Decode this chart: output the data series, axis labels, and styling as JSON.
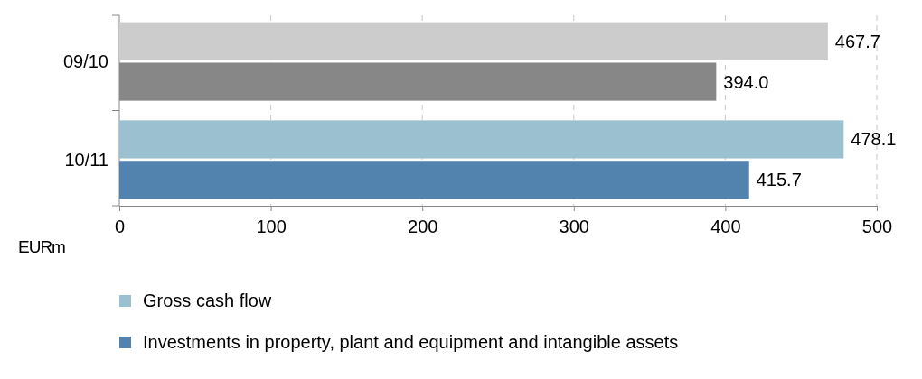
{
  "chart_data": {
    "type": "bar",
    "orientation": "horizontal",
    "categories": [
      "09/10",
      "10/11"
    ],
    "series": [
      {
        "name": "Gross cash flow",
        "color": "#9bc0cf",
        "colors": [
          "#cccccc",
          "#9bc0cf"
        ],
        "values": [
          467.7,
          478.1
        ],
        "value_labels": [
          "467.7",
          "478.1"
        ]
      },
      {
        "name": "Investments in property, plant and equipment and intangible assets",
        "color": "#5282ae",
        "colors": [
          "#878787",
          "#5282ae"
        ],
        "values": [
          394.0,
          415.7
        ],
        "value_labels": [
          "394.0",
          "415.7"
        ]
      }
    ],
    "xlabel": "EURm",
    "xlim": [
      0,
      500
    ],
    "xticks": [
      0,
      100,
      200,
      300,
      400,
      500
    ],
    "grid": "x",
    "legend": "bottom"
  }
}
